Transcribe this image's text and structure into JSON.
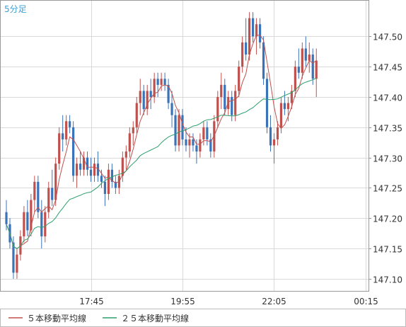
{
  "chart_data": {
    "type": "candlestick",
    "timeframe_label": "5分足",
    "ylim": [
      147.08,
      147.56
    ],
    "y_ticks": [
      "147.10",
      "147.15",
      "147.20",
      "147.25",
      "147.30",
      "147.35",
      "147.40",
      "147.45",
      "147.50"
    ],
    "x_ticks": [
      {
        "label": "17:45",
        "index": 24
      },
      {
        "label": "19:55",
        "index": 50
      },
      {
        "label": "22:05",
        "index": 76
      },
      {
        "label": "00:15",
        "index": 102
      }
    ],
    "legend": [
      {
        "name": "５本移動平均線",
        "color": "#c0504d"
      },
      {
        "name": "２５本移動平均線",
        "color": "#2e9f6f"
      }
    ],
    "colors": {
      "up": "#c0504d",
      "down": "#3b73b9",
      "ma5": "#c0504d",
      "ma25": "#2e9f6f",
      "grid": "#d9d9d9"
    },
    "candles": [
      [
        147.21,
        147.23,
        147.18,
        147.19
      ],
      [
        147.19,
        147.2,
        147.15,
        147.16
      ],
      [
        147.16,
        147.17,
        147.1,
        147.11
      ],
      [
        147.11,
        147.15,
        147.1,
        147.14
      ],
      [
        147.14,
        147.18,
        147.13,
        147.17
      ],
      [
        147.17,
        147.22,
        147.16,
        147.21
      ],
      [
        147.21,
        147.23,
        147.17,
        147.18
      ],
      [
        147.18,
        147.24,
        147.17,
        147.23
      ],
      [
        147.23,
        147.27,
        147.21,
        147.26
      ],
      [
        147.26,
        147.27,
        147.2,
        147.21
      ],
      [
        147.21,
        147.23,
        147.15,
        147.17
      ],
      [
        147.17,
        147.22,
        147.16,
        147.21
      ],
      [
        147.21,
        147.26,
        147.2,
        147.25
      ],
      [
        147.25,
        147.28,
        147.22,
        147.23
      ],
      [
        147.23,
        147.3,
        147.22,
        147.29
      ],
      [
        147.29,
        147.35,
        147.28,
        147.34
      ],
      [
        147.34,
        147.37,
        147.31,
        147.33
      ],
      [
        147.33,
        147.37,
        147.32,
        147.36
      ],
      [
        147.36,
        147.37,
        147.34,
        147.35
      ],
      [
        147.35,
        147.36,
        147.26,
        147.27
      ],
      [
        147.27,
        147.3,
        147.25,
        147.29
      ],
      [
        147.29,
        147.31,
        147.27,
        147.28
      ],
      [
        147.28,
        147.31,
        147.27,
        147.3
      ],
      [
        147.3,
        147.31,
        147.27,
        147.28
      ],
      [
        147.28,
        147.3,
        147.26,
        147.27
      ],
      [
        147.27,
        147.3,
        147.26,
        147.29
      ],
      [
        147.29,
        147.31,
        147.26,
        147.27
      ],
      [
        147.27,
        147.28,
        147.25,
        147.26
      ],
      [
        147.26,
        147.27,
        147.22,
        147.24
      ],
      [
        147.24,
        147.29,
        147.23,
        147.28
      ],
      [
        147.28,
        147.29,
        147.25,
        147.26
      ],
      [
        147.26,
        147.27,
        147.24,
        147.25
      ],
      [
        147.25,
        147.28,
        147.24,
        147.27
      ],
      [
        147.27,
        147.31,
        147.26,
        147.3
      ],
      [
        147.3,
        147.32,
        147.28,
        147.31
      ],
      [
        147.31,
        147.35,
        147.3,
        147.34
      ],
      [
        147.34,
        147.36,
        147.32,
        147.35
      ],
      [
        147.35,
        147.4,
        147.34,
        147.39
      ],
      [
        147.39,
        147.43,
        147.37,
        147.41
      ],
      [
        147.41,
        147.42,
        147.37,
        147.38
      ],
      [
        147.38,
        147.42,
        147.37,
        147.41
      ],
      [
        147.41,
        147.43,
        147.38,
        147.4
      ],
      [
        147.4,
        147.44,
        147.39,
        147.43
      ],
      [
        147.43,
        147.44,
        147.4,
        147.42
      ],
      [
        147.42,
        147.44,
        147.41,
        147.43
      ],
      [
        147.43,
        147.44,
        147.41,
        147.42
      ],
      [
        147.42,
        147.43,
        147.38,
        147.39
      ],
      [
        147.39,
        147.41,
        147.35,
        147.37
      ],
      [
        147.37,
        147.38,
        147.31,
        147.32
      ],
      [
        147.32,
        147.38,
        147.31,
        147.37
      ],
      [
        147.37,
        147.38,
        147.32,
        147.33
      ],
      [
        147.33,
        147.35,
        147.31,
        147.32
      ],
      [
        147.32,
        147.34,
        147.3,
        147.33
      ],
      [
        147.33,
        147.34,
        147.31,
        147.32
      ],
      [
        147.32,
        147.33,
        147.29,
        147.31
      ],
      [
        147.31,
        147.34,
        147.3,
        147.33
      ],
      [
        147.33,
        147.36,
        147.32,
        147.35
      ],
      [
        147.35,
        147.36,
        147.32,
        147.33
      ],
      [
        147.33,
        147.34,
        147.3,
        147.31
      ],
      [
        147.31,
        147.37,
        147.3,
        147.36
      ],
      [
        147.36,
        147.41,
        147.35,
        147.4
      ],
      [
        147.4,
        147.44,
        147.38,
        147.42
      ],
      [
        147.42,
        147.43,
        147.37,
        147.38
      ],
      [
        147.38,
        147.41,
        147.37,
        147.4
      ],
      [
        147.4,
        147.41,
        147.36,
        147.37
      ],
      [
        147.37,
        147.42,
        147.36,
        147.41
      ],
      [
        147.41,
        147.46,
        147.4,
        147.45
      ],
      [
        147.45,
        147.5,
        147.44,
        147.49
      ],
      [
        147.49,
        147.53,
        147.46,
        147.47
      ],
      [
        147.47,
        147.54,
        147.46,
        147.53
      ],
      [
        147.53,
        147.54,
        147.49,
        147.5
      ],
      [
        147.5,
        147.53,
        147.47,
        147.52
      ],
      [
        147.52,
        147.53,
        147.48,
        147.49
      ],
      [
        147.49,
        147.5,
        147.42,
        147.43
      ],
      [
        147.43,
        147.44,
        147.34,
        147.35
      ],
      [
        147.35,
        147.37,
        147.31,
        147.32
      ],
      [
        147.32,
        147.34,
        147.29,
        147.33
      ],
      [
        147.33,
        147.36,
        147.32,
        147.35
      ],
      [
        147.35,
        147.4,
        147.34,
        147.39
      ],
      [
        147.39,
        147.41,
        147.37,
        147.38
      ],
      [
        147.38,
        147.4,
        147.36,
        147.39
      ],
      [
        147.39,
        147.42,
        147.38,
        147.41
      ],
      [
        147.41,
        147.46,
        147.4,
        147.45
      ],
      [
        147.45,
        147.48,
        147.43,
        147.44
      ],
      [
        147.44,
        147.49,
        147.43,
        147.48
      ],
      [
        147.48,
        147.5,
        147.45,
        147.46
      ],
      [
        147.46,
        147.49,
        147.44,
        147.47
      ],
      [
        147.47,
        147.48,
        147.42,
        147.43
      ],
      [
        147.43,
        147.48,
        147.4,
        147.46
      ]
    ]
  }
}
